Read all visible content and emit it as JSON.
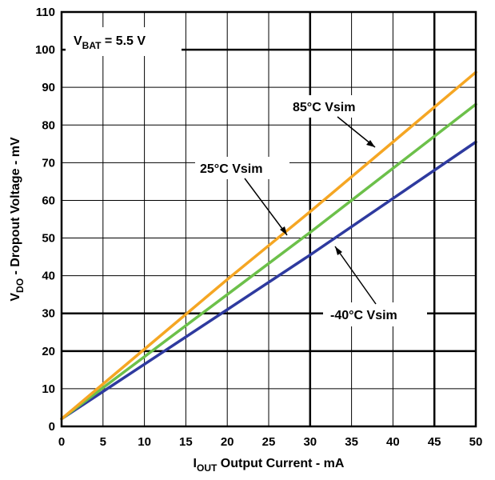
{
  "chart_data": {
    "type": "line",
    "xlabel": {
      "main": "I",
      "sub": "OUT",
      "rest": " Output Current - mA"
    },
    "ylabel": {
      "main": "V",
      "sub": "DO",
      "rest": " - Dropout Voltage - mV"
    },
    "xlim": [
      0,
      50
    ],
    "ylim": [
      0,
      110
    ],
    "xticks": [
      "0",
      "5",
      "10",
      "15",
      "20",
      "25",
      "30",
      "35",
      "40",
      "45",
      "50"
    ],
    "yticks": [
      "0",
      "10",
      "20",
      "30",
      "40",
      "50",
      "60",
      "70",
      "80",
      "90",
      "100",
      "110"
    ],
    "grid": true,
    "condition": {
      "main": "V",
      "sub": "BAT",
      "rest": " = 5.5 V"
    },
    "series": [
      {
        "name": "85°C Vsim",
        "color": "#f5a623",
        "x": [
          0,
          10,
          20,
          30,
          40,
          50
        ],
        "y": [
          2,
          20.5,
          39,
          57,
          75.5,
          94
        ]
      },
      {
        "name": "25°C Vsim",
        "color": "#6cc04a",
        "x": [
          0,
          10,
          20,
          30,
          40,
          50
        ],
        "y": [
          2,
          18.5,
          35,
          51.5,
          68.5,
          85.5
        ]
      },
      {
        "name": "-40°C Vsim",
        "color": "#2e3a9f",
        "x": [
          0,
          10,
          20,
          30,
          40,
          50
        ],
        "y": [
          2,
          16.5,
          31,
          45.5,
          60.5,
          75.5
        ]
      }
    ]
  }
}
